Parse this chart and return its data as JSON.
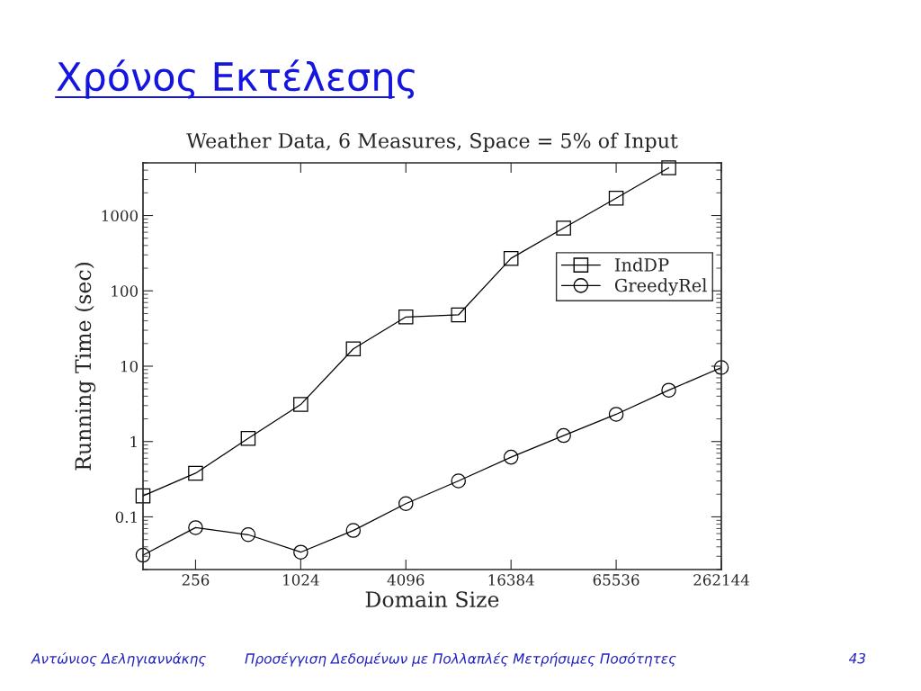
{
  "chart_data": {
    "type": "line",
    "title": "Χρόνος Εκτέλεσης",
    "subtitle": "Weather Data, 6 Measures, Space = 5% of Input",
    "xlabel": "Domain Size",
    "ylabel": "Running Time (sec)",
    "x": [
      128,
      256,
      512,
      1024,
      2048,
      4096,
      8192,
      16384,
      32768,
      65536,
      131072,
      262144
    ],
    "series": [
      {
        "name": "IndDP",
        "color": "#000000",
        "marker": "square",
        "values": [
          0.19,
          0.38,
          1.1,
          3.1,
          17,
          45,
          48,
          270,
          680,
          1700,
          4300,
          null
        ]
      },
      {
        "name": "GreedyRel",
        "color": "#000000",
        "marker": "circle",
        "values": [
          0.031,
          0.072,
          0.058,
          0.034,
          0.066,
          0.15,
          0.3,
          0.62,
          1.2,
          2.3,
          4.8,
          9.6
        ]
      }
    ],
    "log": "xy",
    "xlim": [
      128,
      262144
    ],
    "xticks": [
      256,
      1024,
      4096,
      16384,
      65536,
      262144
    ],
    "ylim": [
      0.02,
      5000
    ],
    "yticks": [
      0.1,
      1,
      10,
      100,
      1000
    ],
    "grid": false,
    "legend": "right",
    "line_style": "solid",
    "annotations": [
      "Αντώνιος Δεληγιαννάκης",
      "Προσέγγιση Δεδομένων με Πολλαπλές Μετρήσιμες Ποσότητες",
      "43"
    ]
  }
}
